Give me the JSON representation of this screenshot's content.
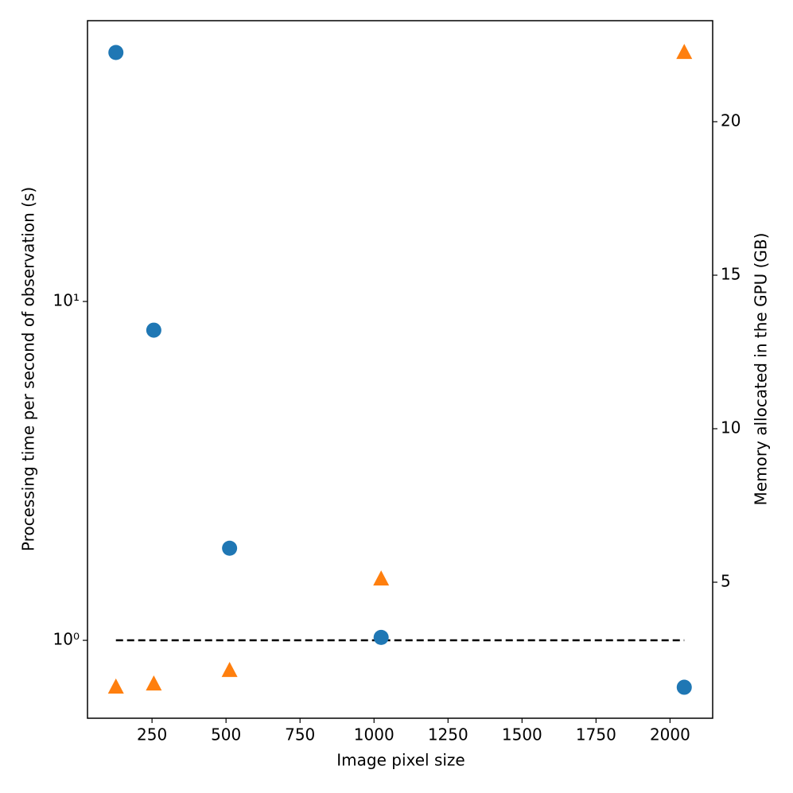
{
  "chart_data": {
    "type": "scatter",
    "xlabel": "Image pixel size",
    "ylabel": "Processing time per second of observation (s)",
    "y2label": "Memory allocated in the GPU (GB)",
    "x": [
      128,
      256,
      512,
      1024,
      2048
    ],
    "series": [
      {
        "color": "#1f77b4",
        "marker": "circle",
        "axis": "y",
        "values": [
          54.3,
          8.23,
          1.87,
          1.02,
          0.727
        ]
      },
      {
        "color": "#ff7f0e",
        "marker": "triangle",
        "axis": "y2",
        "values": [
          1.58,
          1.68,
          2.12,
          5.1,
          22.25
        ]
      }
    ],
    "reference_line": {
      "y": 1,
      "xmin": 128,
      "xmax": 2048,
      "color": "#000000",
      "dashed": true
    },
    "xlim": [
      32,
      2144
    ],
    "xticks": [
      250,
      500,
      750,
      1000,
      1250,
      1500,
      1750,
      2000
    ],
    "ylim": [
      0.589,
      67.4
    ],
    "yscale": "log",
    "yticks": [
      {
        "value": 1,
        "label": "10⁰"
      },
      {
        "value": 10,
        "label": "10¹"
      }
    ],
    "y2lim": [
      0.57,
      23.29
    ],
    "y2ticks": [
      5,
      10,
      15,
      20
    ]
  }
}
